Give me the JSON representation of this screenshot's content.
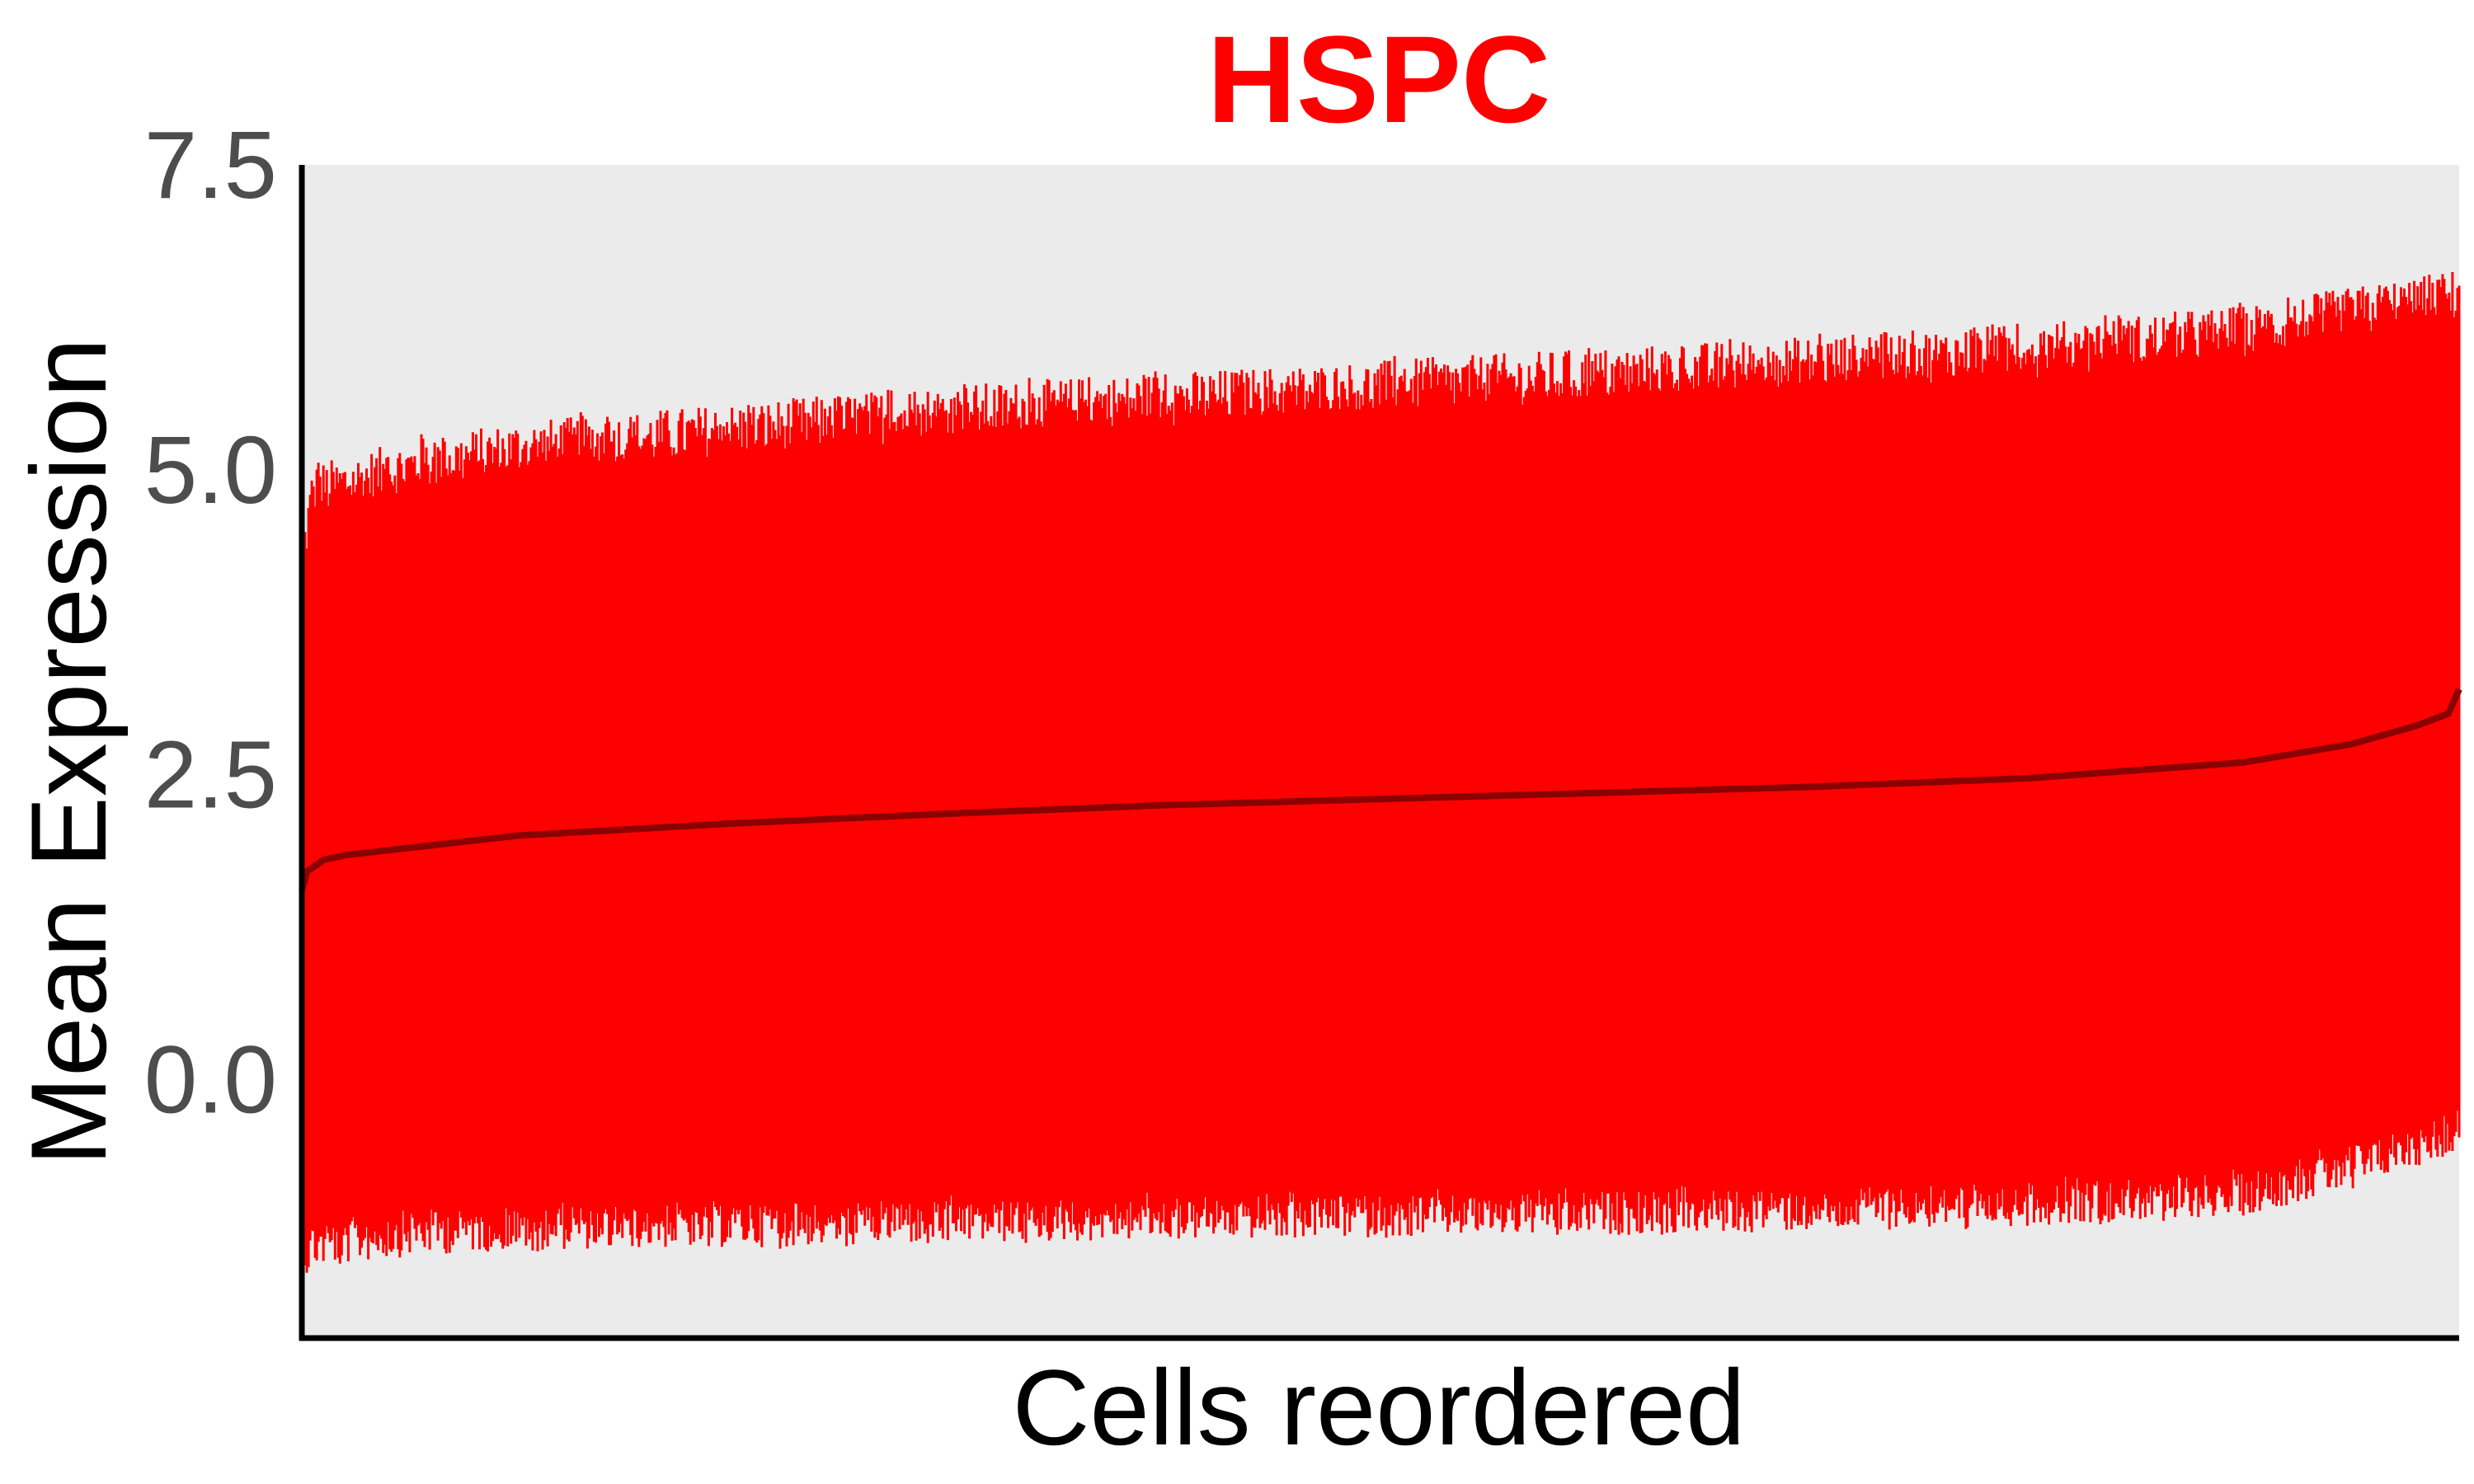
{
  "chart_data": {
    "type": "line",
    "title": "HSPC",
    "xlabel": "Cells reordered",
    "ylabel": "Mean Expression",
    "ylim": [
      -2.1,
      7.5
    ],
    "yticks": [
      0.0,
      2.5,
      5.0,
      7.5
    ],
    "ytick_labels": [
      "0.0",
      "2.5",
      "5.0",
      "7.5"
    ],
    "x_ticks_shown": false,
    "grid": false,
    "legend": "none",
    "colors": {
      "title": "#ff0000",
      "band": "#ff0000",
      "mean_line": "#8b0000",
      "panel_background": "#ebebeb",
      "axis": "#000000"
    },
    "series": [
      {
        "role": "mean",
        "x": [
          0,
          0.002,
          0.01,
          0.02,
          0.05,
          0.1,
          0.2,
          0.3,
          0.4,
          0.5,
          0.6,
          0.7,
          0.8,
          0.9,
          0.95,
          0.98,
          0.995,
          1.0
        ],
        "values": [
          1.55,
          1.7,
          1.8,
          1.84,
          1.9,
          2.0,
          2.1,
          2.18,
          2.25,
          2.3,
          2.35,
          2.4,
          2.47,
          2.6,
          2.75,
          2.9,
          3.0,
          3.2
        ]
      },
      {
        "role": "band-upper",
        "x": [
          0,
          0.005,
          0.05,
          0.1,
          0.2,
          0.3,
          0.4,
          0.5,
          0.6,
          0.7,
          0.8,
          0.9,
          0.95,
          1.0
        ],
        "values": [
          4.0,
          4.6,
          4.8,
          4.95,
          5.1,
          5.25,
          5.35,
          5.45,
          5.55,
          5.65,
          5.75,
          5.9,
          6.05,
          6.2
        ]
      },
      {
        "role": "band-lower",
        "x": [
          0,
          0.005,
          0.05,
          0.1,
          0.2,
          0.3,
          0.4,
          0.5,
          0.6,
          0.7,
          0.8,
          0.9,
          0.95,
          1.0
        ],
        "values": [
          -1.3,
          -1.15,
          -1.05,
          -1.0,
          -0.98,
          -0.95,
          -0.92,
          -0.9,
          -0.88,
          -0.85,
          -0.8,
          -0.72,
          -0.5,
          -0.2
        ]
      }
    ]
  }
}
